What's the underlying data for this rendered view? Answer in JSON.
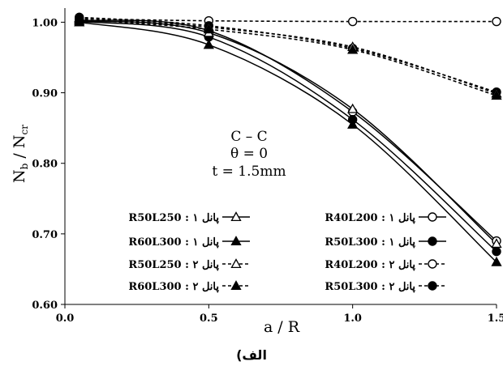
{
  "chart_data": {
    "type": "line",
    "xlabel": "a / R",
    "ylabel_main": "N",
    "ylabel_sub1": "b",
    "ylabel_slash": " / N",
    "ylabel_sub2": "cr",
    "xlim": [
      0,
      1.5
    ],
    "ylim": [
      0.6,
      1.02
    ],
    "xticks": [
      "0.0",
      "0.5",
      "1.0",
      "1.5"
    ],
    "yticks": [
      "0.60",
      "0.70",
      "0.80",
      "0.90",
      "1.00"
    ],
    "grid": false,
    "annotation": [
      "C – C",
      "θ = 0",
      "t = 1.5mm"
    ],
    "caption": "الف)",
    "x": [
      0.05,
      0.5,
      1.0,
      1.5
    ],
    "series": [
      {
        "name": "R40L200 : پانل ۱",
        "values": [
          1.003,
          0.988,
          0.873,
          0.69
        ],
        "marker": "circle-open",
        "dash": "solid",
        "color": "#000000"
      },
      {
        "name": "R50L300 : پانل ۱",
        "values": [
          1.001,
          0.979,
          0.862,
          0.675
        ],
        "marker": "circle-filled",
        "dash": "solid",
        "color": "#000000"
      },
      {
        "name": "R40L200 : پانل ۲",
        "values": [
          1.005,
          1.002,
          1.001,
          1.001
        ],
        "marker": "circle-open",
        "dash": "dashed",
        "color": "#000000"
      },
      {
        "name": "R50L300 : پانل ۲",
        "values": [
          1.007,
          0.995,
          0.963,
          0.901
        ],
        "marker": "circle-filled",
        "dash": "dashed",
        "color": "#000000"
      },
      {
        "name": "R50L250 : پانل ۱",
        "values": [
          1.002,
          0.985,
          0.877,
          0.686
        ],
        "marker": "triangle-open",
        "dash": "solid",
        "color": "#000000"
      },
      {
        "name": "R60L300 : پانل ۱",
        "values": [
          1.0,
          0.968,
          0.855,
          0.66
        ],
        "marker": "triangle-filled",
        "dash": "solid",
        "color": "#000000"
      },
      {
        "name": "R50L250 : پانل ۲",
        "values": [
          1.006,
          0.993,
          0.965,
          0.899
        ],
        "marker": "triangle-open",
        "dash": "dashed",
        "color": "#000000"
      },
      {
        "name": "R60L300 : پانل ۲",
        "values": [
          1.004,
          0.99,
          0.961,
          0.896
        ],
        "marker": "triangle-filled",
        "dash": "dashed",
        "color": "#000000"
      }
    ]
  }
}
